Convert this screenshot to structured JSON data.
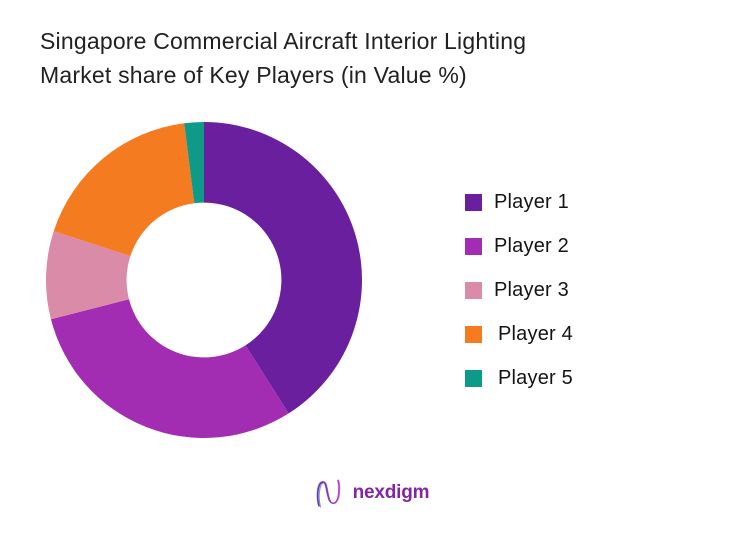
{
  "page": {
    "background": "#ffffff"
  },
  "title_lines": [
    "Singapore Commercial Aircraft Interior Lighting",
    "Market share of Key Players (in Value %)"
  ],
  "chart_data": {
    "type": "pie",
    "subtype": "donut",
    "title": "Singapore Commercial Aircraft Interior Lighting Market share of Key Players (in Value %)",
    "labels": [
      "Player 1",
      "Player 2",
      "Player 3",
      "Player 4",
      "Player 5"
    ],
    "values": [
      41,
      30,
      9,
      18,
      2
    ],
    "colors": [
      "#6A1F9F",
      "#A22DB2",
      "#D98BA8",
      "#F47B20",
      "#0D9A89"
    ],
    "start_angle_deg": 0,
    "direction": "clockwise",
    "inner_radius_ratio": 0.49,
    "legend_position": "right",
    "data_labels_shown": false
  },
  "footer": {
    "brand": "nexdigm"
  }
}
